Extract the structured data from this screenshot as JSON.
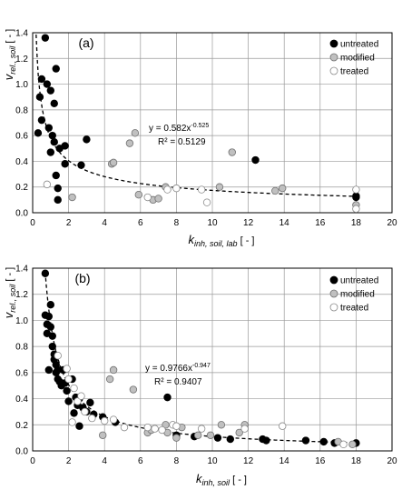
{
  "chart_data": [
    {
      "type": "scatter",
      "panel_label": "(a)",
      "ylabel": "v_rel., soil [ - ]",
      "xlabel": "k_inh, soil, lab [ - ]",
      "xlim": [
        0,
        20
      ],
      "ylim": [
        0,
        1.4
      ],
      "xticks": [
        "0",
        "2",
        "4",
        "6",
        "8",
        "10",
        "12",
        "14",
        "16",
        "18",
        "20"
      ],
      "yticks": [
        "0.0",
        "0.2",
        "0.4",
        "0.6",
        "0.8",
        "1.0",
        "1.2",
        "1.4"
      ],
      "grid": true,
      "legend_position": "top-right",
      "fit": {
        "equation": "y = 0.582x^-0.525",
        "r2": "R² = 0.5129",
        "a": 0.582,
        "b": -0.525,
        "style": "dashed"
      },
      "series": [
        {
          "name": "untreated",
          "color": "#000000",
          "points": [
            [
              0.3,
              0.62
            ],
            [
              0.4,
              0.9
            ],
            [
              0.5,
              1.04
            ],
            [
              0.5,
              0.72
            ],
            [
              0.7,
              1.36
            ],
            [
              0.8,
              1.0
            ],
            [
              0.9,
              0.66
            ],
            [
              1.0,
              0.47
            ],
            [
              1.0,
              0.95
            ],
            [
              1.1,
              0.6
            ],
            [
              1.2,
              0.85
            ],
            [
              1.2,
              0.55
            ],
            [
              1.3,
              1.12
            ],
            [
              1.3,
              0.29
            ],
            [
              1.4,
              0.1
            ],
            [
              1.4,
              0.19
            ],
            [
              1.5,
              0.5
            ],
            [
              1.8,
              0.52
            ],
            [
              1.8,
              0.38
            ],
            [
              2.7,
              0.37
            ],
            [
              3.0,
              0.57
            ],
            [
              12.4,
              0.41
            ],
            [
              18.0,
              0.13
            ],
            [
              18.0,
              0.12
            ]
          ]
        },
        {
          "name": "modified",
          "color": "#c0c0c0",
          "points": [
            [
              2.2,
              0.12
            ],
            [
              4.4,
              0.38
            ],
            [
              4.5,
              0.39
            ],
            [
              5.4,
              0.54
            ],
            [
              5.7,
              0.62
            ],
            [
              5.9,
              0.14
            ],
            [
              6.7,
              0.1
            ],
            [
              7.0,
              0.11
            ],
            [
              7.4,
              0.2
            ],
            [
              10.4,
              0.2
            ],
            [
              11.1,
              0.47
            ],
            [
              13.5,
              0.17
            ],
            [
              13.9,
              0.19
            ],
            [
              18.0,
              0.06
            ]
          ]
        },
        {
          "name": "treated",
          "color": "#ffffff",
          "points": [
            [
              0.8,
              0.22
            ],
            [
              6.4,
              0.12
            ],
            [
              7.5,
              0.18
            ],
            [
              8.0,
              0.19
            ],
            [
              9.4,
              0.18
            ],
            [
              9.7,
              0.08
            ],
            [
              18.0,
              0.18
            ],
            [
              18.0,
              0.03
            ]
          ]
        }
      ]
    },
    {
      "type": "scatter",
      "panel_label": "(b)",
      "ylabel": "v_rel., soil [ - ]",
      "xlabel": "k_inh, soil [ - ]",
      "xlim": [
        0,
        20
      ],
      "ylim": [
        0,
        1.4
      ],
      "xticks": [
        "0",
        "2",
        "4",
        "6",
        "8",
        "10",
        "12",
        "14",
        "16",
        "18",
        "20"
      ],
      "yticks": [
        "0.0",
        "0.2",
        "0.4",
        "0.6",
        "0.8",
        "1.0",
        "1.2",
        "1.4"
      ],
      "grid": true,
      "legend_position": "top-right",
      "fit": {
        "equation": "y = 0.9766x^-0.947",
        "r2": "R² = 0.9407",
        "a": 0.9766,
        "b": -0.947,
        "style": "dashed"
      },
      "series": [
        {
          "name": "untreated",
          "color": "#000000",
          "points": [
            [
              0.7,
              1.36
            ],
            [
              0.7,
              1.04
            ],
            [
              0.8,
              0.9
            ],
            [
              0.8,
              0.97
            ],
            [
              0.9,
              1.03
            ],
            [
              0.9,
              0.62
            ],
            [
              1.0,
              1.12
            ],
            [
              1.0,
              0.95
            ],
            [
              1.1,
              0.88
            ],
            [
              1.1,
              0.8
            ],
            [
              1.2,
              0.7
            ],
            [
              1.2,
              0.74
            ],
            [
              1.3,
              0.66
            ],
            [
              1.3,
              0.6
            ],
            [
              1.4,
              0.62
            ],
            [
              1.4,
              0.55
            ],
            [
              1.5,
              0.53
            ],
            [
              1.6,
              0.5
            ],
            [
              1.7,
              0.62
            ],
            [
              1.8,
              0.52
            ],
            [
              1.9,
              0.46
            ],
            [
              2.0,
              0.38
            ],
            [
              2.2,
              0.55
            ],
            [
              2.4,
              0.41
            ],
            [
              2.5,
              0.35
            ],
            [
              2.6,
              0.4
            ],
            [
              2.8,
              0.33
            ],
            [
              3.0,
              0.3
            ],
            [
              3.2,
              0.37
            ],
            [
              3.4,
              0.28
            ],
            [
              3.9,
              0.26
            ],
            [
              4.6,
              0.22
            ],
            [
              2.3,
              0.29
            ],
            [
              2.6,
              0.19
            ],
            [
              7.5,
              0.41
            ],
            [
              8.0,
              0.12
            ],
            [
              9.0,
              0.11
            ],
            [
              10.3,
              0.1
            ],
            [
              11.0,
              0.09
            ],
            [
              12.8,
              0.09
            ],
            [
              13.0,
              0.08
            ],
            [
              15.2,
              0.08
            ],
            [
              16.2,
              0.07
            ],
            [
              16.8,
              0.06
            ],
            [
              18.0,
              0.06
            ]
          ]
        },
        {
          "name": "modified",
          "color": "#c0c0c0",
          "points": [
            [
              4.3,
              0.55
            ],
            [
              4.5,
              0.62
            ],
            [
              3.9,
              0.12
            ],
            [
              5.6,
              0.47
            ],
            [
              6.4,
              0.14
            ],
            [
              6.6,
              0.16
            ],
            [
              7.4,
              0.2
            ],
            [
              7.5,
              0.14
            ],
            [
              8.0,
              0.1
            ],
            [
              8.3,
              0.18
            ],
            [
              9.2,
              0.12
            ],
            [
              9.9,
              0.12
            ],
            [
              10.5,
              0.2
            ],
            [
              11.5,
              0.14
            ],
            [
              11.8,
              0.2
            ],
            [
              17.0,
              0.07
            ],
            [
              17.8,
              0.05
            ]
          ]
        },
        {
          "name": "treated",
          "color": "#ffffff",
          "points": [
            [
              1.4,
              0.73
            ],
            [
              1.9,
              0.63
            ],
            [
              2.0,
              0.55
            ],
            [
              2.3,
              0.48
            ],
            [
              2.5,
              0.38
            ],
            [
              2.7,
              0.42
            ],
            [
              2.2,
              0.22
            ],
            [
              2.9,
              0.3
            ],
            [
              3.3,
              0.25
            ],
            [
              4.0,
              0.23
            ],
            [
              4.5,
              0.24
            ],
            [
              5.1,
              0.18
            ],
            [
              6.4,
              0.18
            ],
            [
              6.8,
              0.17
            ],
            [
              7.2,
              0.16
            ],
            [
              7.8,
              0.2
            ],
            [
              8.0,
              0.19
            ],
            [
              9.4,
              0.17
            ],
            [
              11.8,
              0.17
            ],
            [
              13.9,
              0.19
            ],
            [
              17.3,
              0.05
            ]
          ]
        }
      ]
    }
  ]
}
